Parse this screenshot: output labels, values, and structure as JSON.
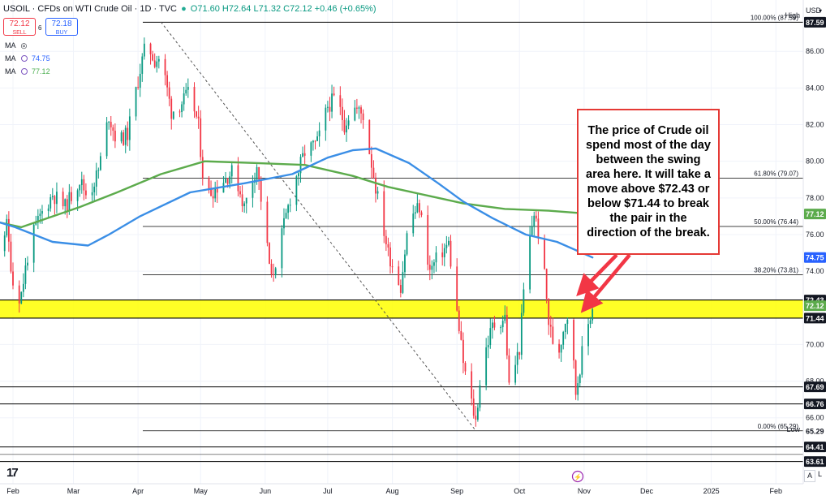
{
  "header": {
    "symbol": "USOIL",
    "description": "CFDs on WTI Crude Oil",
    "interval": "1D",
    "source": "TVC",
    "ohlc": "O71.60 H72.64 L71.32 C72.12 +0.46 (+0.65%)",
    "currency": "USD"
  },
  "trade_buttons": {
    "sell_price": "72.12",
    "sell_label": "SELL",
    "buy_price": "72.18",
    "buy_label": "BUY",
    "spread": "6"
  },
  "indicators": [
    {
      "label": "MA",
      "value": ""
    },
    {
      "label": "MA",
      "value": "74.75",
      "color": "#3a8ee6"
    },
    {
      "label": "MA",
      "value": "77.12",
      "color": "#5cab4c"
    }
  ],
  "annotation": {
    "text": "The price of Crude oil spend most of the day between the swing area here. It will take a move above $72.43 or below $71.44 to break the pair in the direction of the break."
  },
  "colors": {
    "up_candle": "#089981",
    "down_candle": "#f23645",
    "ma_blue": "#3a8ee6",
    "ma_green": "#5cab4c",
    "swing_zone": "#ffff00",
    "annotation_border": "#e53935"
  },
  "icons": {
    "logo": "tradingview-logo-icon",
    "visibility": "eye-icon",
    "settings": "settings-circle-icon",
    "event": "lightning-event-icon"
  },
  "chart_data": {
    "type": "candlestick",
    "x_axis_labels": [
      "Feb",
      "Mar",
      "Apr",
      "May",
      "Jun",
      "Jul",
      "Aug",
      "Sep",
      "Oct",
      "Nov",
      "Dec",
      "2025",
      "Feb"
    ],
    "y_axis_ticks": [
      86.0,
      84.0,
      82.0,
      80.0,
      78.0,
      76.0,
      74.0,
      70.0,
      68.0,
      66.0
    ],
    "ylim": [
      62.4,
      88.8
    ],
    "price_tags": [
      {
        "value": "87.59",
        "style": "dark"
      },
      {
        "value": "77.12",
        "style": "green"
      },
      {
        "value": "74.75",
        "style": "blue"
      },
      {
        "value": "72.43",
        "style": "dark"
      },
      {
        "value": "72.12",
        "style": "green"
      },
      {
        "value": "71.44",
        "style": "dark"
      },
      {
        "value": "67.69",
        "style": "dark"
      },
      {
        "value": "66.76",
        "style": "dark"
      },
      {
        "value": "65.29",
        "style": "plain"
      },
      {
        "value": "64.41",
        "style": "dark"
      },
      {
        "value": "63.61",
        "style": "dark"
      }
    ],
    "hi_label": "High",
    "lo_label": "Low",
    "horizontal_levels": [
      87.59,
      67.69,
      66.76,
      64.41,
      64.0,
      63.61
    ],
    "swing_zone": [
      71.44,
      72.43
    ],
    "fibonacci": [
      {
        "label": "100.00% (87.59)",
        "value": 87.59
      },
      {
        "label": "61.80% (79.07)",
        "value": 79.07
      },
      {
        "label": "50.00% (76.44)",
        "value": 76.44
      },
      {
        "label": "38.20% (73.81)",
        "value": 73.81
      },
      {
        "label": "0.00% (65.29)",
        "value": 65.29
      }
    ],
    "trendline": {
      "from": [
        "Apr 12",
        87.6
      ],
      "to": [
        "Sep 10",
        65.3
      ]
    },
    "price_series": [
      [
        "Jan 02",
        72.5
      ],
      [
        "Jan 08",
        71.0
      ],
      [
        "Jan 16",
        73.0
      ],
      [
        "Jan 24",
        75.0
      ],
      [
        "Jan 29",
        76.5
      ],
      [
        "Feb 02",
        72.3
      ],
      [
        "Feb 05",
        72.8
      ],
      [
        "Feb 09",
        75.5
      ],
      [
        "Feb 14",
        77.0
      ],
      [
        "Feb 20",
        78.2
      ],
      [
        "Feb 26",
        77.5
      ],
      [
        "Mar 04",
        79.0
      ],
      [
        "Mar 08",
        78.0
      ],
      [
        "Mar 13",
        79.5
      ],
      [
        "Mar 18",
        82.5
      ],
      [
        "Mar 22",
        81.0
      ],
      [
        "Mar 27",
        81.5
      ],
      [
        "Apr 02",
        85.0
      ],
      [
        "Apr 05",
        86.5
      ],
      [
        "Apr 09",
        85.5
      ],
      [
        "Apr 12",
        85.7
      ],
      [
        "Apr 17",
        82.7
      ],
      [
        "Apr 22",
        83.2
      ],
      [
        "Apr 26",
        83.8
      ],
      [
        "Apr 30",
        81.9
      ],
      [
        "May 03",
        78.1
      ],
      [
        "May 08",
        78.5
      ],
      [
        "May 13",
        79.1
      ],
      [
        "May 17",
        79.5
      ],
      [
        "May 22",
        77.5
      ],
      [
        "May 28",
        79.8
      ],
      [
        "May 31",
        77.0
      ],
      [
        "Jun 04",
        73.5
      ],
      [
        "Jun 08",
        75.5
      ],
      [
        "Jun 14",
        78.5
      ],
      [
        "Jun 20",
        80.5
      ],
      [
        "Jun 26",
        81.0
      ],
      [
        "Jul 01",
        83.0
      ],
      [
        "Jul 05",
        83.5
      ],
      [
        "Jul 09",
        82.0
      ],
      [
        "Jul 13",
        83.0
      ],
      [
        "Jul 18",
        82.5
      ],
      [
        "Jul 24",
        78.6
      ],
      [
        "Jul 30",
        75.0
      ],
      [
        "Aug 05",
        73.2
      ],
      [
        "Aug 09",
        76.9
      ],
      [
        "Aug 14",
        77.5
      ],
      [
        "Aug 19",
        74.0
      ],
      [
        "Aug 23",
        74.8
      ],
      [
        "Aug 28",
        75.5
      ],
      [
        "Aug 30",
        73.5
      ],
      [
        "Sep 04",
        69.0
      ],
      [
        "Sep 06",
        67.8
      ],
      [
        "Sep 10",
        65.8
      ],
      [
        "Sep 13",
        69.0
      ],
      [
        "Sep 18",
        71.0
      ],
      [
        "Sep 24",
        71.5
      ],
      [
        "Sep 26",
        67.7
      ],
      [
        "Oct 01",
        69.8
      ],
      [
        "Oct 04",
        74.4
      ],
      [
        "Oct 08",
        77.2
      ],
      [
        "Oct 12",
        75.0
      ],
      [
        "Oct 15",
        71.2
      ],
      [
        "Oct 19",
        69.2
      ],
      [
        "Oct 23",
        71.4
      ],
      [
        "Oct 25",
        71.8
      ],
      [
        "Oct 28",
        67.4
      ],
      [
        "Oct 31",
        69.5
      ],
      [
        "Nov 04",
        71.6
      ],
      [
        "Nov 05",
        72.1
      ]
    ],
    "ma_blue_series": [
      [
        "Jan 02",
        79.5
      ],
      [
        "Jan 16",
        77.0
      ],
      [
        "Feb 02",
        76.4
      ],
      [
        "Feb 20",
        75.6
      ],
      [
        "Mar 08",
        75.4
      ],
      [
        "Mar 18",
        76.0
      ],
      [
        "Apr 02",
        77.0
      ],
      [
        "Apr 26",
        78.3
      ],
      [
        "May 22",
        78.8
      ],
      [
        "Jun 14",
        79.3
      ],
      [
        "Jul 01",
        80.2
      ],
      [
        "Jul 13",
        80.6
      ],
      [
        "Jul 24",
        80.7
      ],
      [
        "Aug 09",
        79.9
      ],
      [
        "Aug 23",
        78.8
      ],
      [
        "Sep 04",
        77.8
      ],
      [
        "Sep 18",
        76.9
      ],
      [
        "Oct 04",
        76.0
      ],
      [
        "Oct 19",
        75.6
      ],
      [
        "Nov 05",
        74.75
      ]
    ],
    "ma_green_series": [
      [
        "Jan 16",
        76.9
      ],
      [
        "Feb 05",
        76.4
      ],
      [
        "Mar 04",
        77.5
      ],
      [
        "Mar 22",
        78.3
      ],
      [
        "Apr 12",
        79.3
      ],
      [
        "May 03",
        80.0
      ],
      [
        "May 28",
        79.9
      ],
      [
        "Jun 20",
        79.8
      ],
      [
        "Jul 13",
        79.2
      ],
      [
        "Jul 30",
        78.6
      ],
      [
        "Aug 19",
        78.1
      ],
      [
        "Sep 04",
        77.7
      ],
      [
        "Sep 24",
        77.4
      ],
      [
        "Oct 15",
        77.3
      ],
      [
        "Nov 05",
        77.12
      ]
    ],
    "grid": true,
    "legend_position": "top-left"
  }
}
